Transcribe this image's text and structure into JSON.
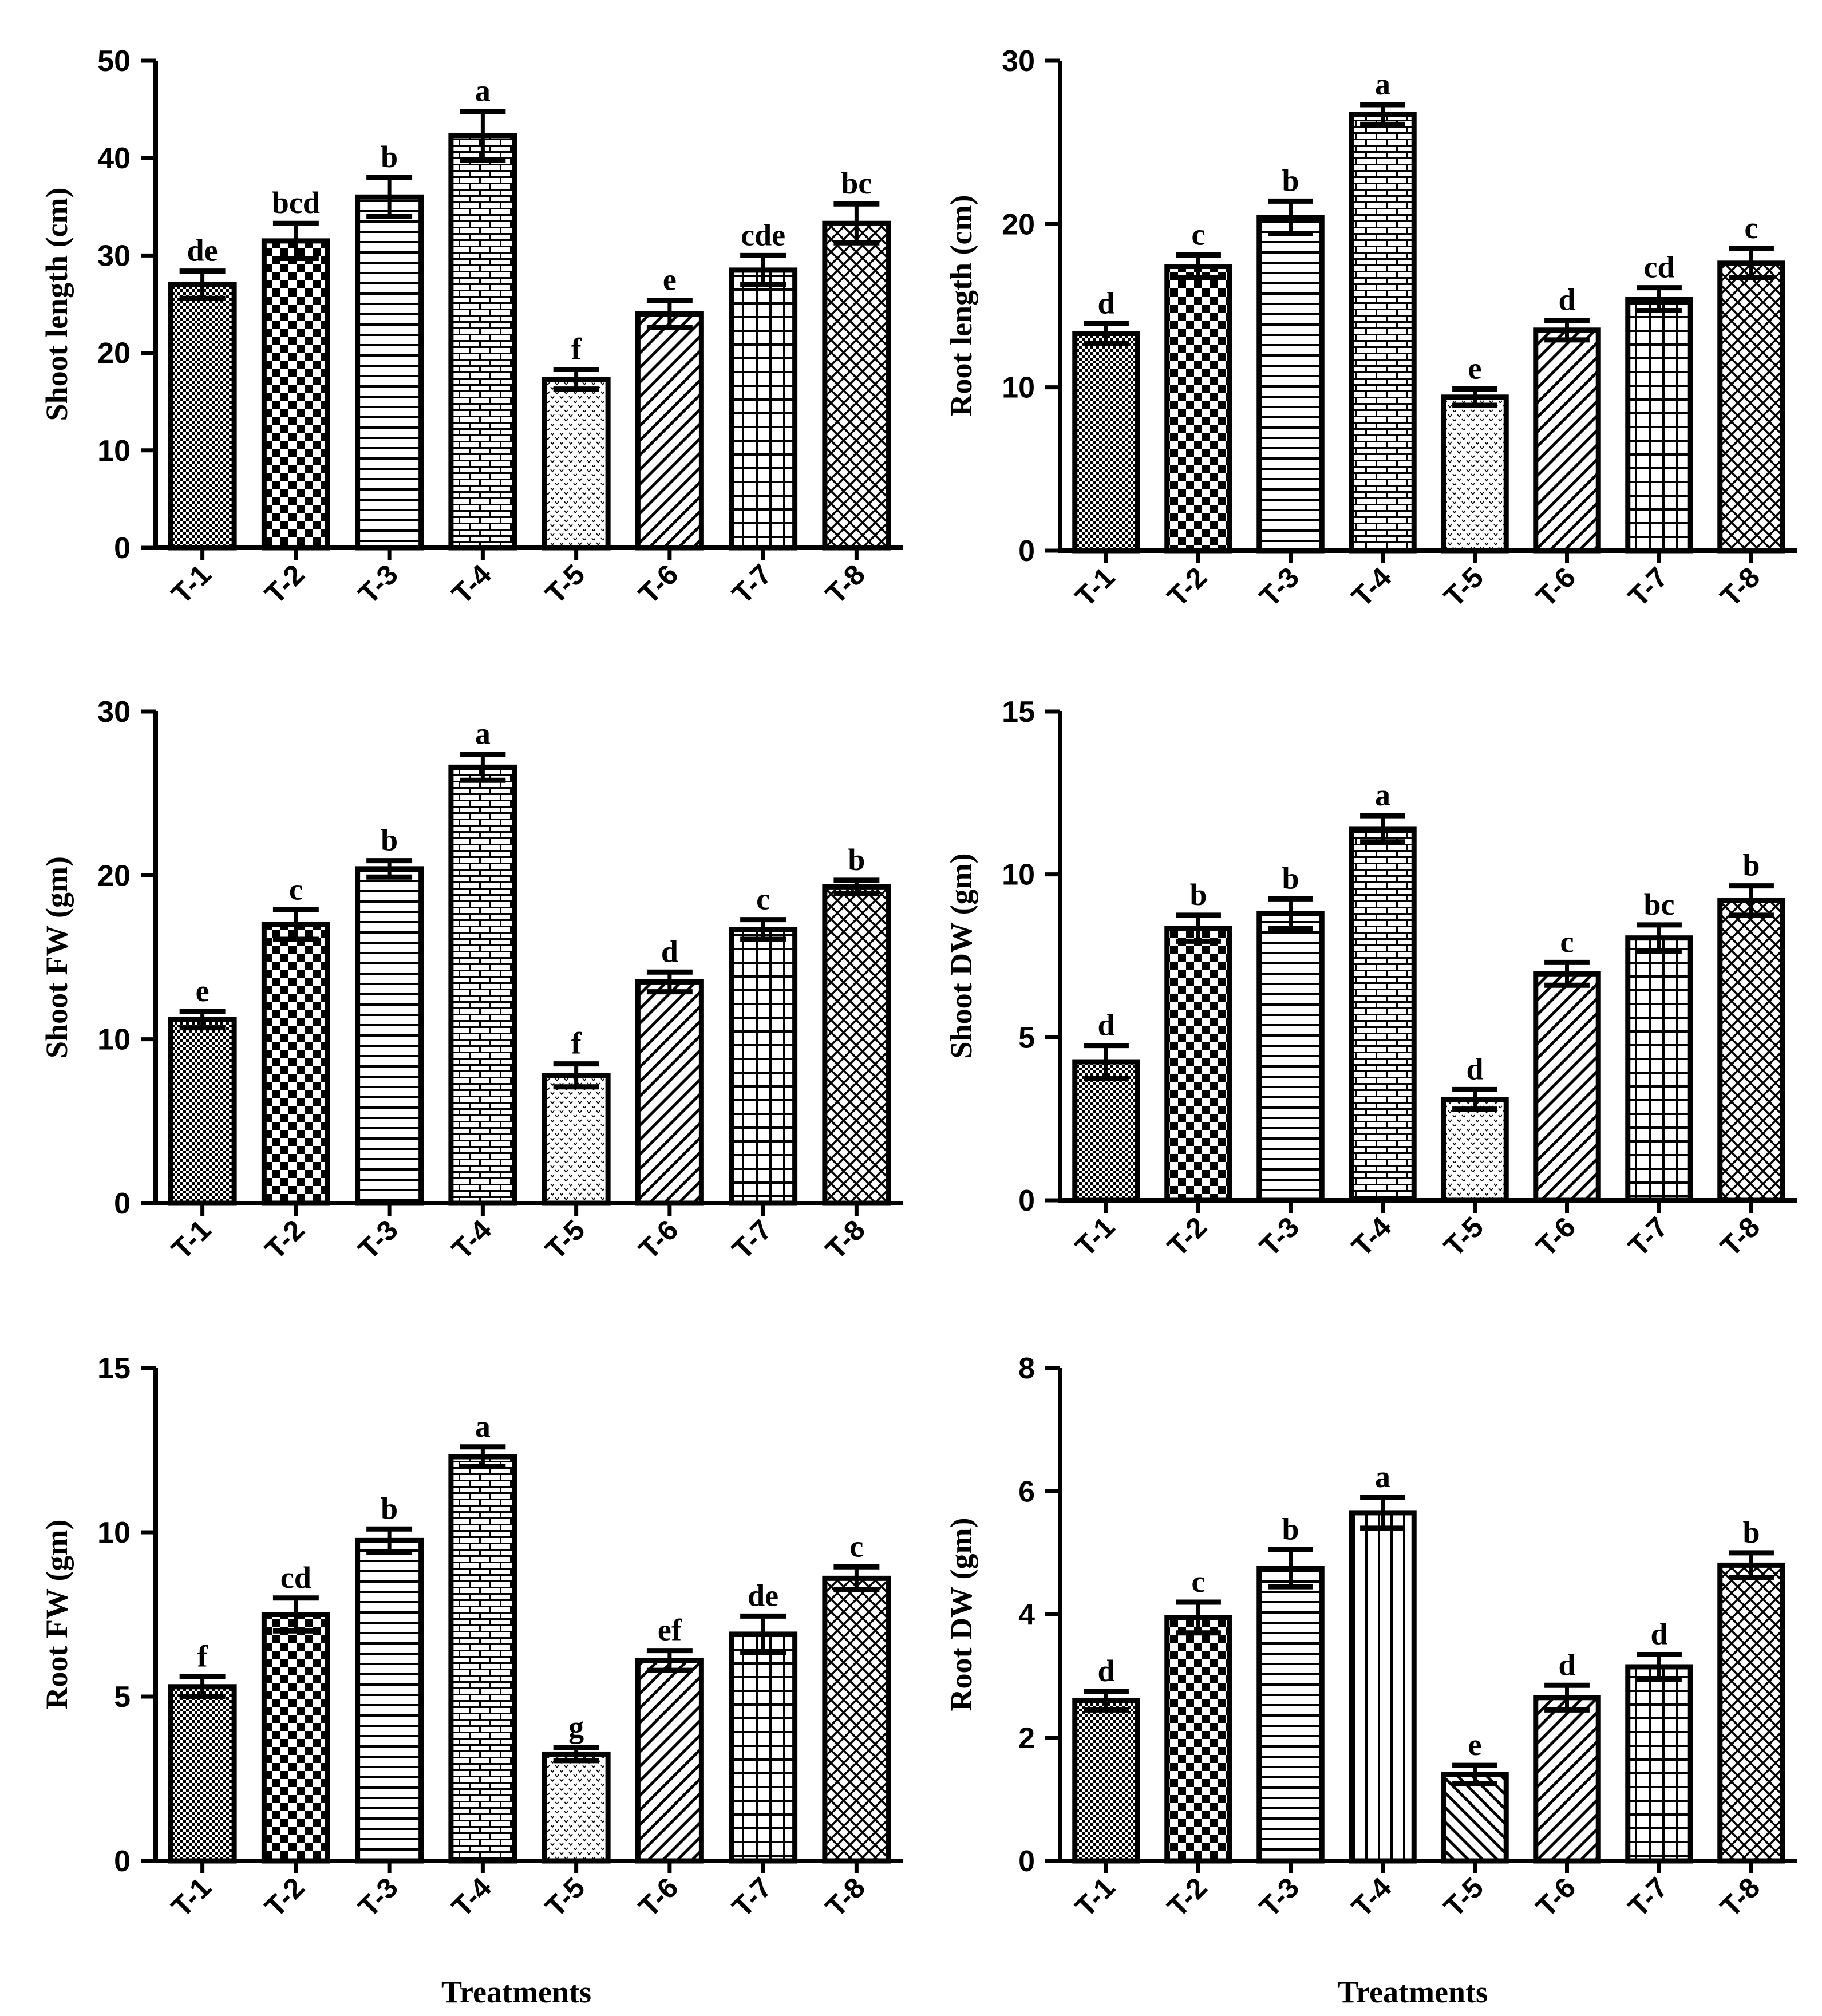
{
  "figure": {
    "x_axis_title": "Treatments",
    "colors": {
      "ink": "#000000",
      "background": "#ffffff"
    }
  },
  "chart_data": [
    {
      "type": "bar",
      "title": "",
      "xlabel": "",
      "ylabel": "Shoot length (cm)",
      "ylim": [
        0,
        50
      ],
      "yticks": [
        0,
        10,
        20,
        30,
        40,
        50
      ],
      "categories": [
        "T-1",
        "T-2",
        "T-3",
        "T-4",
        "T-5",
        "T-6",
        "T-7",
        "T-8"
      ],
      "values": [
        27,
        31.5,
        36,
        42.3,
        17.3,
        24,
        28.5,
        33.3
      ],
      "errors": [
        1.4,
        1.8,
        2.0,
        2.5,
        1.0,
        1.4,
        1.5,
        2.0
      ],
      "letters": [
        "de",
        "bcd",
        "b",
        "a",
        "f",
        "e",
        "cde",
        "bc"
      ],
      "patterns": [
        "pat-dots",
        "pat-check",
        "pat-hlines",
        "pat-brick",
        "pat-tiny",
        "pat-diag",
        "pat-grid",
        "pat-diamond"
      ]
    },
    {
      "type": "bar",
      "title": "",
      "xlabel": "",
      "ylabel": "Root length (cm)",
      "ylim": [
        0,
        30
      ],
      "yticks": [
        0,
        10,
        20,
        30
      ],
      "categories": [
        "T-1",
        "T-2",
        "T-3",
        "T-4",
        "T-5",
        "T-6",
        "T-7",
        "T-8"
      ],
      "values": [
        13.3,
        17.4,
        20.4,
        26.7,
        9.4,
        13.5,
        15.4,
        17.6
      ],
      "errors": [
        0.6,
        0.7,
        1.0,
        0.6,
        0.5,
        0.6,
        0.7,
        0.9
      ],
      "letters": [
        "d",
        "c",
        "b",
        "a",
        "e",
        "d",
        "cd",
        "c"
      ],
      "patterns": [
        "pat-dots",
        "pat-check",
        "pat-hlines",
        "pat-brick",
        "pat-tiny",
        "pat-diag",
        "pat-grid",
        "pat-diamond"
      ]
    },
    {
      "type": "bar",
      "title": "",
      "xlabel": "",
      "ylabel": "Shoot FW (gm)",
      "ylim": [
        0,
        30
      ],
      "yticks": [
        0,
        10,
        20,
        30
      ],
      "categories": [
        "T-1",
        "T-2",
        "T-3",
        "T-4",
        "T-5",
        "T-6",
        "T-7",
        "T-8"
      ],
      "values": [
        11.2,
        17,
        20.4,
        26.6,
        7.8,
        13.5,
        16.7,
        19.3
      ],
      "errors": [
        0.5,
        0.9,
        0.5,
        0.8,
        0.7,
        0.6,
        0.6,
        0.4
      ],
      "letters": [
        "e",
        "c",
        "b",
        "a",
        "f",
        "d",
        "c",
        "b"
      ],
      "patterns": [
        "pat-dots",
        "pat-check",
        "pat-hlines",
        "pat-brick",
        "pat-tiny",
        "pat-diag",
        "pat-grid",
        "pat-diamond"
      ]
    },
    {
      "type": "bar",
      "title": "",
      "xlabel": "",
      "ylabel": "Shoot DW (gm)",
      "ylim": [
        0,
        15
      ],
      "yticks": [
        0,
        5,
        10,
        15
      ],
      "categories": [
        "T-1",
        "T-2",
        "T-3",
        "T-4",
        "T-5",
        "T-6",
        "T-7",
        "T-8"
      ],
      "values": [
        4.25,
        8.35,
        8.8,
        11.4,
        3.1,
        6.95,
        8.05,
        9.2
      ],
      "errors": [
        0.5,
        0.4,
        0.45,
        0.4,
        0.3,
        0.35,
        0.4,
        0.45
      ],
      "letters": [
        "d",
        "b",
        "b",
        "a",
        "d",
        "c",
        "bc",
        "b"
      ],
      "patterns": [
        "pat-dots",
        "pat-check",
        "pat-hlines",
        "pat-brick",
        "pat-tiny",
        "pat-diag",
        "pat-grid",
        "pat-diamond"
      ]
    },
    {
      "type": "bar",
      "title": "",
      "xlabel": "Treatments",
      "ylabel": "Root FW (gm)",
      "ylim": [
        0,
        15
      ],
      "yticks": [
        0,
        5,
        10,
        15
      ],
      "categories": [
        "T-1",
        "T-2",
        "T-3",
        "T-4",
        "T-5",
        "T-6",
        "T-7",
        "T-8"
      ],
      "values": [
        5.3,
        7.5,
        9.75,
        12.3,
        3.25,
        6.1,
        6.9,
        8.6
      ],
      "errors": [
        0.3,
        0.5,
        0.35,
        0.3,
        0.2,
        0.3,
        0.55,
        0.35
      ],
      "letters": [
        "f",
        "cd",
        "b",
        "a",
        "g",
        "ef",
        "de",
        "c"
      ],
      "patterns": [
        "pat-dots",
        "pat-check",
        "pat-hlines",
        "pat-brick",
        "pat-tiny",
        "pat-diag",
        "pat-grid",
        "pat-diamond"
      ]
    },
    {
      "type": "bar",
      "title": "",
      "xlabel": "Treatments",
      "ylabel": "Root DW (gm)",
      "ylim": [
        0,
        8
      ],
      "yticks": [
        0,
        2,
        4,
        6,
        8
      ],
      "categories": [
        "T-1",
        "T-2",
        "T-3",
        "T-4",
        "T-5",
        "T-6",
        "T-7",
        "T-8"
      ],
      "values": [
        2.6,
        3.95,
        4.75,
        5.65,
        1.4,
        2.65,
        3.15,
        4.8
      ],
      "errors": [
        0.15,
        0.25,
        0.3,
        0.25,
        0.15,
        0.2,
        0.2,
        0.2
      ],
      "letters": [
        "d",
        "c",
        "b",
        "a",
        "e",
        "d",
        "d",
        "b"
      ],
      "patterns": [
        "pat-dots",
        "pat-check",
        "pat-hlines",
        "pat-vlines",
        "pat-diag2",
        "pat-diag",
        "pat-grid",
        "pat-diamond"
      ]
    }
  ]
}
